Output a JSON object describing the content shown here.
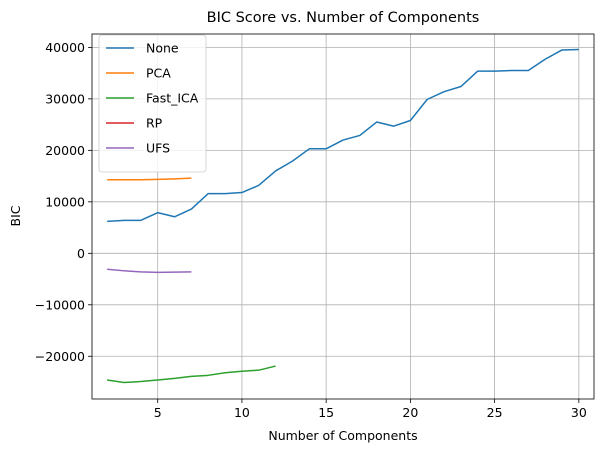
{
  "chart_data": {
    "type": "line",
    "title": "BIC Score vs. Number of Components",
    "xlabel": "Number of Components",
    "ylabel": "BIC",
    "xlim": [
      1.1,
      30.9
    ],
    "ylim": [
      -28300,
      42600
    ],
    "xticks": [
      5,
      10,
      15,
      20,
      25,
      30
    ],
    "yticks": [
      -20000,
      -10000,
      0,
      10000,
      20000,
      30000,
      40000
    ],
    "ytick_labels": [
      "−20000",
      "−10000",
      "0",
      "10000",
      "20000",
      "30000",
      "40000"
    ],
    "grid": true,
    "legend_position": "top-left",
    "series": [
      {
        "name": "None",
        "color": "#1f77b4",
        "x": [
          2,
          3,
          4,
          5,
          6,
          7,
          8,
          9,
          10,
          11,
          12,
          13,
          14,
          15,
          16,
          17,
          18,
          19,
          20,
          21,
          22,
          23,
          24,
          25,
          26,
          27,
          28,
          29,
          30
        ],
        "y": [
          6200,
          6400,
          6400,
          7900,
          7100,
          8600,
          11600,
          11600,
          11800,
          13200,
          16000,
          17900,
          20300,
          20300,
          22000,
          22900,
          25500,
          24700,
          25800,
          29900,
          31400,
          32400,
          35400,
          35400,
          35500,
          35500,
          37700,
          39500,
          39600
        ]
      },
      {
        "name": "PCA",
        "color": "#ff7f0e",
        "x": [
          2,
          3,
          4,
          5,
          6,
          7
        ],
        "y": [
          14300,
          14300,
          14300,
          14350,
          14450,
          14600
        ]
      },
      {
        "name": "Fast_ICA",
        "color": "#2ca02c",
        "x": [
          2,
          3,
          4,
          5,
          6,
          7,
          8,
          9,
          10,
          11,
          12
        ],
        "y": [
          -24600,
          -25100,
          -24900,
          -24600,
          -24300,
          -23900,
          -23700,
          -23200,
          -22900,
          -22700,
          -21900
        ]
      },
      {
        "name": "RP",
        "color": "#d62728",
        "x": [],
        "y": []
      },
      {
        "name": "UFS",
        "color": "#9467bd",
        "x": [
          2,
          3,
          4,
          5,
          6,
          7
        ],
        "y": [
          -3100,
          -3400,
          -3600,
          -3700,
          -3650,
          -3600
        ]
      }
    ]
  }
}
